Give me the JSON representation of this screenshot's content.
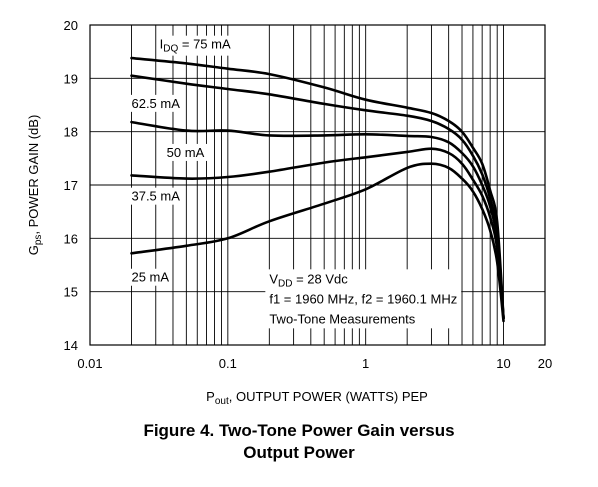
{
  "chart_data": {
    "type": "line",
    "xscale": "log",
    "xlim": [
      0.01,
      20
    ],
    "ylim": [
      14,
      20
    ],
    "x_ticks": [
      "0.01",
      "0.1",
      "1",
      "10",
      "20"
    ],
    "y_ticks": [
      "14",
      "15",
      "16",
      "17",
      "18",
      "19",
      "20"
    ],
    "grid": true,
    "xlabel": {
      "main": "P",
      "sub": "out",
      "rest": ", OUTPUT POWER (WATTS) PEP"
    },
    "ylabel": {
      "main": "G",
      "sub": "ps",
      "rest": ", POWER GAIN (dB)"
    },
    "series": [
      {
        "name": "75 mA",
        "label_prefix_main": "I",
        "label_prefix_sub": "DQ",
        "label_prefix_rest": " = ",
        "x": [
          0.02,
          0.05,
          0.1,
          0.2,
          0.5,
          1,
          2,
          3,
          4,
          5,
          6,
          7,
          8,
          9,
          10
        ],
        "y": [
          19.38,
          19.28,
          19.18,
          19.08,
          18.83,
          18.6,
          18.45,
          18.35,
          18.2,
          18.0,
          17.7,
          17.4,
          16.9,
          16.3,
          14.5
        ]
      },
      {
        "name": "62.5 mA",
        "x": [
          0.02,
          0.05,
          0.1,
          0.2,
          0.5,
          1,
          2,
          3,
          4,
          5,
          6,
          7,
          8,
          9,
          10
        ],
        "y": [
          19.05,
          18.9,
          18.8,
          18.7,
          18.52,
          18.4,
          18.3,
          18.2,
          18.05,
          17.85,
          17.55,
          17.2,
          16.75,
          16.1,
          14.5
        ]
      },
      {
        "name": "50 mA",
        "x": [
          0.02,
          0.05,
          0.1,
          0.2,
          0.5,
          1,
          2,
          3,
          4,
          5,
          6,
          7,
          8,
          9,
          10
        ],
        "y": [
          18.18,
          18.02,
          18.02,
          17.93,
          17.93,
          17.95,
          17.92,
          17.9,
          17.8,
          17.6,
          17.35,
          17.0,
          16.6,
          15.95,
          14.5
        ]
      },
      {
        "name": "37.5 mA",
        "x": [
          0.02,
          0.05,
          0.1,
          0.2,
          0.5,
          1,
          2,
          3,
          4,
          5,
          6,
          7,
          8,
          9,
          10
        ],
        "y": [
          17.18,
          17.12,
          17.15,
          17.25,
          17.42,
          17.52,
          17.62,
          17.68,
          17.6,
          17.4,
          17.1,
          16.8,
          16.4,
          15.8,
          14.5
        ]
      },
      {
        "name": "25 mA",
        "x": [
          0.02,
          0.05,
          0.1,
          0.2,
          0.5,
          1,
          2,
          3,
          4,
          5,
          6,
          7,
          8,
          9,
          10
        ],
        "y": [
          15.72,
          15.86,
          16.0,
          16.32,
          16.65,
          16.92,
          17.32,
          17.4,
          17.32,
          17.12,
          16.88,
          16.55,
          16.15,
          15.55,
          14.45
        ]
      }
    ],
    "annotations": [
      {
        "main": "V",
        "sub": "DD",
        "rest": " = 28 Vdc"
      },
      {
        "text": "f1 = 1960 MHz, f2 = 1960.1 MHz"
      },
      {
        "text": "Two-Tone Measurements"
      }
    ]
  },
  "caption": {
    "line1": "Figure 4. Two-Tone Power Gain versus",
    "line2": "Output Power"
  }
}
